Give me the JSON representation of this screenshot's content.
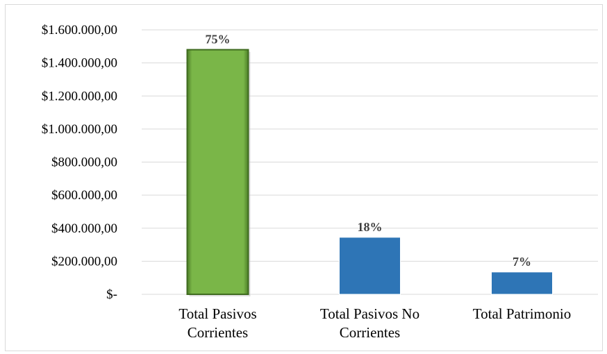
{
  "chart_data": {
    "type": "bar",
    "title": "",
    "xlabel": "",
    "ylabel": "",
    "ylim": [
      0,
      1600000
    ],
    "y_ticks": [
      {
        "value": 0,
        "label": "$-"
      },
      {
        "value": 200000,
        "label": "$200.000,00"
      },
      {
        "value": 400000,
        "label": "$400.000,00"
      },
      {
        "value": 600000,
        "label": "$600.000,00"
      },
      {
        "value": 800000,
        "label": "$800.000,00"
      },
      {
        "value": 1000000,
        "label": "$1.000.000,00"
      },
      {
        "value": 1200000,
        "label": "$1.200.000,00"
      },
      {
        "value": 1400000,
        "label": "$1.400.000,00"
      },
      {
        "value": 1600000,
        "label": "$1.600.000,00"
      }
    ],
    "grid": true,
    "legend": "none",
    "categories": [
      [
        "Total Pasivos",
        "Corrientes"
      ],
      [
        "Total Pasivos No",
        "Corrientes"
      ],
      [
        "Total Patrimonio"
      ]
    ],
    "values": [
      1480000,
      345000,
      135000
    ],
    "data_labels": [
      "75%",
      "18%",
      "7%"
    ],
    "colors": [
      "#7ab648",
      "#2e75b6",
      "#2e75b6"
    ]
  }
}
